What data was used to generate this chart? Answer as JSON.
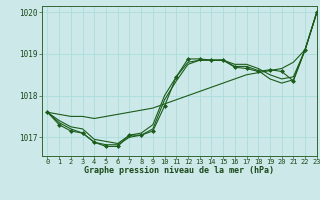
{
  "title": "Graphe pression niveau de la mer (hPa)",
  "bg_color": "#cce8e8",
  "grid_color": "#aadddd",
  "line_color": "#1a5c1a",
  "marker_color": "#1a5c1a",
  "xlim": [
    -0.5,
    23
  ],
  "ylim": [
    1016.55,
    1020.15
  ],
  "yticks": [
    1017,
    1018,
    1019,
    1020
  ],
  "xticks": [
    0,
    1,
    2,
    3,
    4,
    5,
    6,
    7,
    8,
    9,
    10,
    11,
    12,
    13,
    14,
    15,
    16,
    17,
    18,
    19,
    20,
    21,
    22,
    23
  ],
  "series": [
    {
      "x": [
        0,
        1,
        2,
        3,
        4,
        5,
        6,
        7,
        8,
        9,
        10,
        11,
        12,
        13,
        14,
        15,
        16,
        17,
        18,
        19,
        20,
        21,
        22,
        23
      ],
      "y": [
        1017.6,
        1017.55,
        1017.5,
        1017.5,
        1017.45,
        1017.5,
        1017.55,
        1017.6,
        1017.65,
        1017.7,
        1017.8,
        1017.9,
        1018.0,
        1018.1,
        1018.2,
        1018.3,
        1018.4,
        1018.5,
        1018.55,
        1018.6,
        1018.65,
        1018.8,
        1019.1,
        1020.0
      ],
      "with_markers": false
    },
    {
      "x": [
        0,
        1,
        2,
        3,
        4,
        5,
        6,
        7,
        8,
        9,
        10,
        11,
        12,
        13,
        14,
        15,
        16,
        17,
        18,
        19,
        20,
        21,
        22,
        23
      ],
      "y": [
        1017.6,
        1017.4,
        1017.25,
        1017.2,
        1016.95,
        1016.9,
        1016.85,
        1017.05,
        1017.1,
        1017.3,
        1018.0,
        1018.45,
        1018.8,
        1018.85,
        1018.85,
        1018.85,
        1018.75,
        1018.75,
        1018.65,
        1018.5,
        1018.4,
        1018.45,
        1019.1,
        1020.0
      ],
      "with_markers": false
    },
    {
      "x": [
        0,
        1,
        2,
        3,
        4,
        5,
        6,
        7,
        8,
        9,
        10,
        11,
        12,
        13,
        14,
        15,
        16,
        17,
        18,
        19,
        20,
        21,
        22,
        23
      ],
      "y": [
        1017.6,
        1017.35,
        1017.2,
        1017.1,
        1016.88,
        1016.82,
        1016.82,
        1017.0,
        1017.05,
        1017.2,
        1017.9,
        1018.35,
        1018.75,
        1018.85,
        1018.85,
        1018.85,
        1018.7,
        1018.7,
        1018.6,
        1018.4,
        1018.3,
        1018.38,
        1019.1,
        1020.0
      ],
      "with_markers": false
    },
    {
      "x": [
        0,
        1,
        2,
        3,
        4,
        5,
        6,
        7,
        8,
        9,
        10,
        11,
        12,
        13,
        14,
        15,
        16,
        17,
        18,
        19,
        20,
        21,
        22,
        23
      ],
      "y": [
        1017.6,
        1017.3,
        1017.15,
        1017.1,
        1016.88,
        1016.78,
        1016.78,
        1017.05,
        1017.05,
        1017.15,
        1017.75,
        1018.45,
        1018.88,
        1018.88,
        1018.85,
        1018.85,
        1018.68,
        1018.65,
        1018.58,
        1018.62,
        1018.58,
        1018.35,
        1019.1,
        1020.0
      ],
      "with_markers": true
    }
  ]
}
